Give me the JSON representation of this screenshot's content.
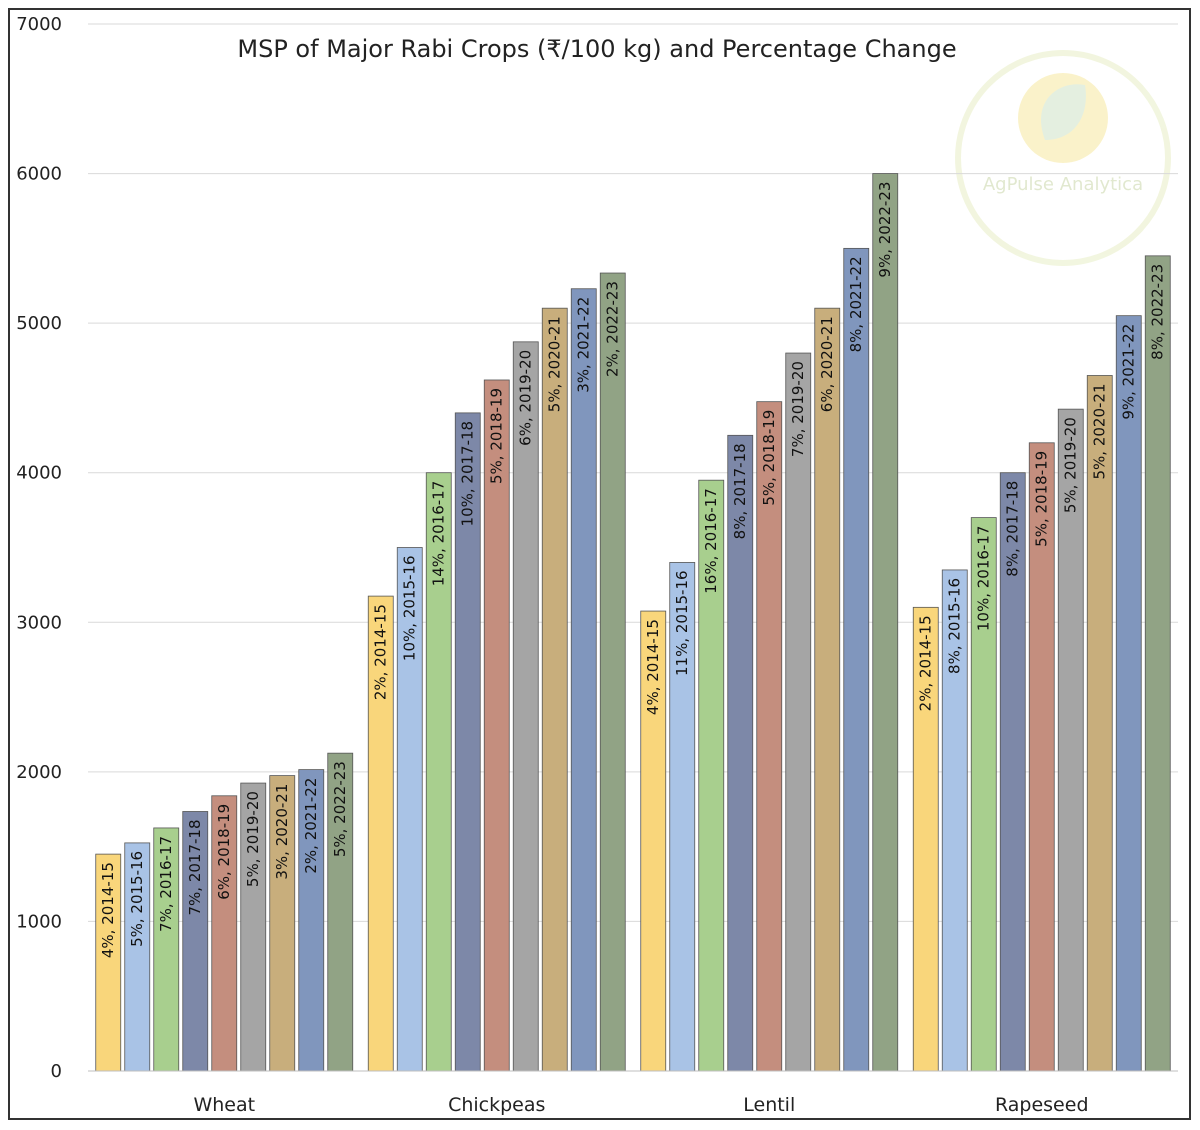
{
  "chart_data": {
    "type": "bar",
    "title": "MSP of Major Rabi Crops (₹/100 kg) and Percentage Change",
    "xlabel": "",
    "ylabel": "",
    "ylim": [
      0,
      7000
    ],
    "yticks": [
      0,
      1000,
      2000,
      3000,
      4000,
      5000,
      6000,
      7000
    ],
    "grid": true,
    "categories": [
      "Wheat",
      "Chickpeas",
      "Lentil",
      "Rapeseed"
    ],
    "series": [
      {
        "name": "2014-15",
        "color": "#f9d67b",
        "values": [
          1450,
          3175,
          3075,
          3100
        ],
        "labels": [
          "4%, 2014-15",
          "2%, 2014-15",
          "4%, 2014-15",
          "2%, 2014-15"
        ]
      },
      {
        "name": "2015-16",
        "color": "#a9c3e6",
        "values": [
          1525,
          3500,
          3400,
          3350
        ],
        "labels": [
          "5%, 2015-16",
          "10%, 2015-16",
          "11%, 2015-16",
          "8%, 2015-16"
        ]
      },
      {
        "name": "2016-17",
        "color": "#a8cf8e",
        "values": [
          1625,
          4000,
          3950,
          3700
        ],
        "labels": [
          "7%, 2016-17",
          "14%, 2016-17",
          "16%, 2016-17",
          "10%, 2016-17"
        ]
      },
      {
        "name": "2017-18",
        "color": "#7d88a8",
        "values": [
          1735,
          4400,
          4250,
          4000
        ],
        "labels": [
          "7%, 2017-18",
          "10%, 2017-18",
          "8%, 2017-18",
          "8%, 2017-18"
        ]
      },
      {
        "name": "2018-19",
        "color": "#c48e7e",
        "values": [
          1840,
          4620,
          4475,
          4200
        ],
        "labels": [
          "6%, 2018-19",
          "5%, 2018-19",
          "5%, 2018-19",
          "5%, 2018-19"
        ]
      },
      {
        "name": "2019-20",
        "color": "#a5a5a5",
        "values": [
          1925,
          4875,
          4800,
          4425
        ],
        "labels": [
          "5%, 2019-20",
          "6%, 2019-20",
          "7%, 2019-20",
          "5%, 2019-20"
        ]
      },
      {
        "name": "2020-21",
        "color": "#c8ae7c",
        "values": [
          1975,
          5100,
          5100,
          4650
        ],
        "labels": [
          "3%, 2020-21",
          "5%, 2020-21",
          "6%, 2020-21",
          "5%, 2020-21"
        ]
      },
      {
        "name": "2021-22",
        "color": "#8096bd",
        "values": [
          2015,
          5230,
          5500,
          5050
        ],
        "labels": [
          "2%, 2021-22",
          "3%, 2021-22",
          "8%, 2021-22",
          "9%, 2021-22"
        ]
      },
      {
        "name": "2022-23",
        "color": "#91a385",
        "values": [
          2125,
          5335,
          6000,
          5450
        ],
        "labels": [
          "5%, 2022-23",
          "2%, 2022-23",
          "9%, 2022-23",
          "8%, 2022-23"
        ]
      }
    ],
    "watermark": {
      "text": "AgPulse Analytica"
    }
  }
}
